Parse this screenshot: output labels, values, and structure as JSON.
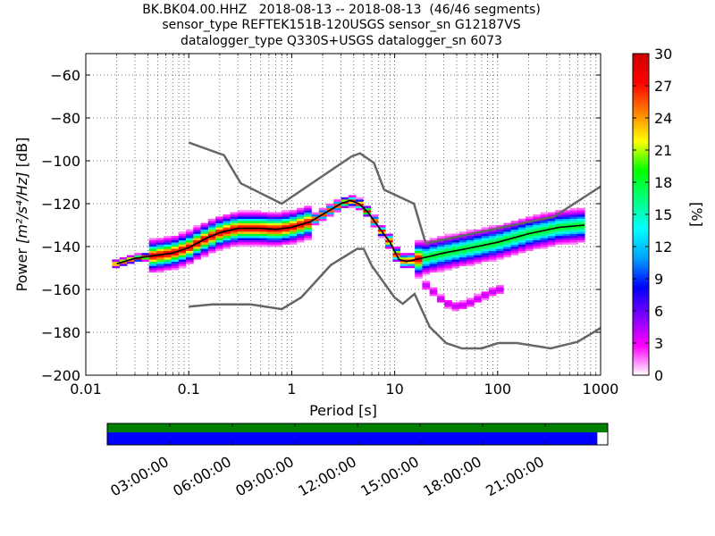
{
  "chart_data": {
    "type": "heatmap",
    "title": [
      "BK.BK04.00.HHZ   2018-08-13 -- 2018-08-13  (46/46 segments)",
      "sensor_type REFTEK151B-120USGS sensor_sn G12187VS",
      "datalogger_type Q330S+USGS datalogger_sn 6073"
    ],
    "xlabel": "Period [s]",
    "ylabel_prefix": "Power ",
    "ylabel_math": "[m²/s⁴/Hz]",
    "ylabel_suffix": " [dB]",
    "xscale": "log",
    "xlim": [
      0.01,
      1000
    ],
    "ylim": [
      -200,
      -50
    ],
    "x_ticks": [
      {
        "value": 0.01,
        "label": "0.01"
      },
      {
        "value": 0.1,
        "label": "0.1"
      },
      {
        "value": 1,
        "label": "1"
      },
      {
        "value": 10,
        "label": "10"
      },
      {
        "value": 100,
        "label": "100"
      },
      {
        "value": 1000,
        "label": "1000"
      }
    ],
    "y_ticks": [
      {
        "value": -60,
        "label": "−60"
      },
      {
        "value": -80,
        "label": "−80"
      },
      {
        "value": -100,
        "label": "−100"
      },
      {
        "value": -120,
        "label": "−120"
      },
      {
        "value": -140,
        "label": "−140"
      },
      {
        "value": -160,
        "label": "−160"
      },
      {
        "value": -180,
        "label": "−180"
      },
      {
        "value": -200,
        "label": "−200"
      }
    ],
    "colorbar": {
      "label": "[%]",
      "range": [
        0,
        30
      ],
      "ticks": [
        {
          "value": 0,
          "label": "0"
        },
        {
          "value": 3,
          "label": "3"
        },
        {
          "value": 6,
          "label": "6"
        },
        {
          "value": 9,
          "label": "9"
        },
        {
          "value": 12,
          "label": "12"
        },
        {
          "value": 15,
          "label": "15"
        },
        {
          "value": 18,
          "label": "18"
        },
        {
          "value": 21,
          "label": "21"
        },
        {
          "value": 24,
          "label": "24"
        },
        {
          "value": 27,
          "label": "27"
        },
        {
          "value": 30,
          "label": "30"
        }
      ],
      "colors": [
        "#ffffff",
        "#ff00ff",
        "#8000ff",
        "#0000ff",
        "#00a0ff",
        "#00ffff",
        "#00ff80",
        "#00ff00",
        "#ffff00",
        "#ff8000",
        "#ff0000",
        "#cc0000"
      ]
    },
    "nlnm": {
      "x": [
        0.1,
        0.17,
        0.4,
        0.8,
        1.24,
        2.4,
        4.3,
        5,
        6,
        10,
        12,
        15.6,
        21.9,
        31.6,
        45,
        70,
        101,
        154,
        328,
        600,
        1000
      ],
      "y": [
        -168,
        -167,
        -167,
        -169.2,
        -163.7,
        -148.6,
        -141.1,
        -141.1,
        -149,
        -163.8,
        -166.7,
        -162.1,
        -177.5,
        -185,
        -187.5,
        -187.5,
        -185,
        -185,
        -187.5,
        -184.4,
        -178
      ]
    },
    "nhnm": {
      "x": [
        0.1,
        0.22,
        0.32,
        0.8,
        3.8,
        4.6,
        6.3,
        7.9,
        15.4,
        20,
        354.8,
        1000
      ],
      "y": [
        -91.5,
        -97.4,
        -110.5,
        -120,
        -98,
        -96.5,
        -101,
        -113.5,
        -120,
        -138.5,
        -126,
        -112
      ]
    },
    "mean_curve": {
      "x": [
        0.02,
        0.03,
        0.05,
        0.07,
        0.1,
        0.15,
        0.2,
        0.3,
        0.5,
        0.7,
        1,
        1.5,
        2,
        3,
        3.7,
        4.5,
        5.5,
        7,
        9,
        11,
        13,
        16,
        20,
        30,
        50,
        100,
        200,
        400,
        700
      ],
      "y": [
        -148,
        -145.5,
        -144,
        -143,
        -140.5,
        -136,
        -133.5,
        -131.5,
        -131.5,
        -132,
        -131,
        -128.5,
        -125,
        -120,
        -118.5,
        -120,
        -124,
        -131,
        -138,
        -146,
        -147,
        -146,
        -145,
        -143,
        -141,
        -138,
        -134,
        -131,
        -130
      ]
    },
    "lower_branch": {
      "x": [
        20,
        25,
        30,
        40,
        50,
        60,
        80,
        100
      ],
      "y": [
        -158,
        -162,
        -166,
        -168,
        -167,
        -165,
        -162,
        -160
      ]
    },
    "time_bar": {
      "tick_labels": [
        "03:00:00",
        "06:00:00",
        "09:00:00",
        "12:00:00",
        "15:00:00",
        "18:00:00",
        "21:00:00"
      ],
      "hours": [
        3,
        6,
        9,
        12,
        15,
        18,
        21
      ],
      "coverage_end_hour": 23.5
    }
  }
}
